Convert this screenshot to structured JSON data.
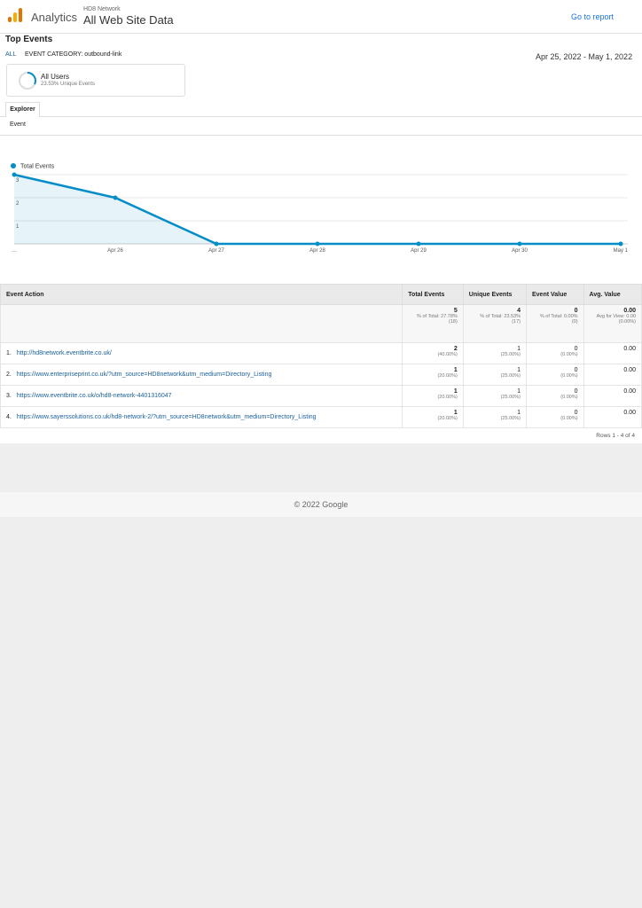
{
  "header": {
    "product": "Analytics",
    "account": "HD8 Network",
    "property": "All Web Site Data",
    "go_to_report": "Go to report"
  },
  "report": {
    "title": "Top Events",
    "breadcrumb_root": "ALL",
    "breadcrumb_current": "EVENT CATEGORY: outbound-link",
    "date_range": "Apr 25, 2022 - May 1, 2022"
  },
  "segment": {
    "name": "All Users",
    "detail": "23.53% Unique Events"
  },
  "tabs": {
    "main": "Explorer",
    "sub": "Event"
  },
  "chart_data": {
    "type": "line",
    "categories": [
      "…",
      "Apr 26",
      "Apr 27",
      "Apr 28",
      "Apr 29",
      "Apr 30",
      "May 1"
    ],
    "series": [
      {
        "name": "Total Events",
        "color": "#058dc7",
        "values": [
          3,
          2,
          0,
          0,
          0,
          0,
          0
        ]
      }
    ],
    "ylim": [
      0,
      3
    ],
    "yticks": [
      1,
      2,
      3
    ],
    "grid": true
  },
  "table": {
    "columns": [
      "Event Action",
      "Total Events",
      "Unique Events",
      "Event Value",
      "Avg. Value"
    ],
    "totals": [
      {
        "value": "5",
        "note": "% of Total: 27.78%",
        "base": "(18)"
      },
      {
        "value": "4",
        "note": "% of Total: 23.53%",
        "base": "(17)"
      },
      {
        "value": "0",
        "note": "% of Total: 0.00%",
        "base": "(0)"
      },
      {
        "value": "0.00",
        "note": "Avg for View: 0.00",
        "base": "(0.00%)"
      }
    ],
    "rows": [
      {
        "index": "1.",
        "action": "http://hd8network.eventbrite.co.uk/",
        "total": "2",
        "total_pct": "(40.00%)",
        "unique": "1",
        "unique_pct": "(25.00%)",
        "value": "0",
        "value_pct": "(0.00%)",
        "avg": "0.00"
      },
      {
        "index": "2.",
        "action": "https://www.enterpriseprint.co.uk/?utm_source=HD8network&utm_medium=Directory_Listing",
        "total": "1",
        "total_pct": "(20.00%)",
        "unique": "1",
        "unique_pct": "(25.00%)",
        "value": "0",
        "value_pct": "(0.00%)",
        "avg": "0.00"
      },
      {
        "index": "3.",
        "action": "https://www.eventbrite.co.uk/o/hd8-network-4401316047",
        "total": "1",
        "total_pct": "(20.00%)",
        "unique": "1",
        "unique_pct": "(25.00%)",
        "value": "0",
        "value_pct": "(0.00%)",
        "avg": "0.00"
      },
      {
        "index": "4.",
        "action": "https://www.sayerssolutions.co.uk/hd8-network-2/?utm_source=HD8network&utm_medium=Directory_Listing",
        "total": "1",
        "total_pct": "(20.00%)",
        "unique": "1",
        "unique_pct": "(25.00%)",
        "value": "0",
        "value_pct": "(0.00%)",
        "avg": "0.00"
      }
    ],
    "pagination": "Rows 1 - 4 of 4"
  },
  "footer": {
    "copyright": "© 2022 Google"
  }
}
